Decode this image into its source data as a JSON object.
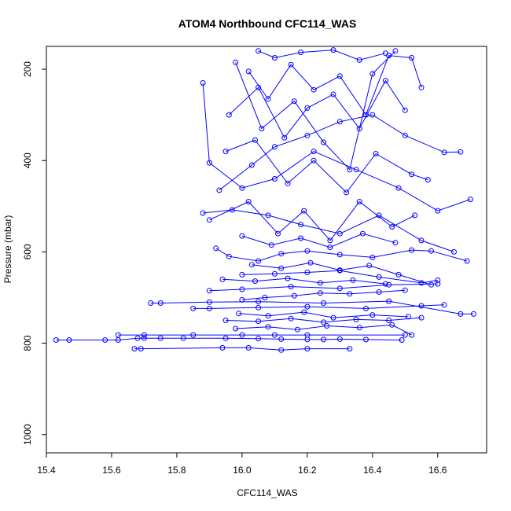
{
  "chart_data": {
    "type": "line",
    "title": "ATOM4 Northbound CFC114_WAS",
    "xlabel": "CFC114_WAS",
    "ylabel": "Pressure (mbar)",
    "xlim": [
      15.4,
      16.75
    ],
    "ylim": [
      1040,
      150
    ],
    "y_inverted": true,
    "x_ticks": [
      "15.4",
      "15.6",
      "15.8",
      "16.0",
      "16.2",
      "16.4",
      "16.6"
    ],
    "y_ticks": [
      "200",
      "400",
      "600",
      "800",
      "1000"
    ],
    "grid": false,
    "line_color": "#0000ff",
    "marker": "open-circle",
    "series": [
      {
        "x": [
          15.43,
          15.47,
          15.58,
          15.62,
          15.68,
          15.7,
          15.75,
          15.82,
          15.95,
          16.05,
          16.12,
          16.2,
          16.25,
          16.3,
          16.38,
          16.49
        ],
        "y": [
          793,
          793,
          793,
          793,
          789,
          789,
          789,
          789,
          789,
          790,
          791,
          792,
          792,
          791,
          792,
          793
        ]
      },
      {
        "x": [
          15.67,
          15.69,
          15.94,
          16.02,
          16.12,
          16.2,
          16.33
        ],
        "y": [
          812,
          812,
          810,
          810,
          815,
          812,
          812
        ]
      },
      {
        "x": [
          15.62,
          15.7,
          15.85,
          16.0,
          16.1,
          16.2,
          16.5
        ],
        "y": [
          782,
          782,
          782,
          782,
          782,
          782,
          782
        ]
      },
      {
        "x": [
          15.72,
          15.75,
          15.9,
          16.05,
          16.25,
          16.45,
          16.67,
          16.71
        ],
        "y": [
          712,
          712,
          710,
          709,
          712,
          708,
          736,
          736
        ]
      },
      {
        "x": [
          15.85,
          15.9,
          16.05,
          16.2,
          16.38,
          16.55,
          16.62
        ],
        "y": [
          724,
          724,
          722,
          720,
          724,
          718,
          716
        ]
      },
      {
        "x": [
          15.9,
          16.0,
          16.15,
          16.3,
          16.45,
          16.6
        ],
        "y": [
          685,
          682,
          676,
          680,
          672,
          670
        ]
      },
      {
        "x": [
          16.0,
          16.1,
          16.2,
          16.3,
          16.42,
          16.55,
          16.6
        ],
        "y": [
          650,
          648,
          645,
          641,
          655,
          668,
          662
        ]
      },
      {
        "x": [
          15.92,
          15.96,
          16.05,
          16.12,
          16.2,
          16.3,
          16.4,
          16.52,
          16.58,
          16.69
        ],
        "y": [
          592,
          610,
          620,
          604,
          598,
          606,
          612,
          596,
          598,
          620
        ]
      },
      {
        "x": [
          15.88,
          15.97,
          16.08,
          16.18,
          16.3,
          16.42,
          16.55,
          16.65
        ],
        "y": [
          515,
          508,
          520,
          540,
          560,
          520,
          575,
          600
        ]
      },
      {
        "x": [
          15.88,
          15.9,
          16.0,
          16.1,
          16.22,
          16.35,
          16.48,
          16.6,
          16.7
        ],
        "y": [
          230,
          405,
          460,
          440,
          380,
          420,
          460,
          510,
          485
        ]
      },
      {
        "x": [
          15.93,
          16.03,
          16.1,
          16.2,
          16.3,
          16.4,
          16.5,
          16.62,
          16.67
        ],
        "y": [
          465,
          410,
          370,
          345,
          315,
          300,
          345,
          382,
          381
        ]
      },
      {
        "x": [
          16.02,
          16.08,
          16.15,
          16.22,
          16.3,
          16.38,
          16.45,
          16.52,
          16.55
        ],
        "y": [
          205,
          265,
          190,
          245,
          215,
          300,
          170,
          175,
          240
        ]
      },
      {
        "x": [
          15.96,
          16.05,
          16.13,
          16.2,
          16.28,
          16.36,
          16.44,
          16.5
        ],
        "y": [
          300,
          240,
          350,
          285,
          255,
          330,
          225,
          290
        ]
      },
      {
        "x": [
          15.98,
          16.06,
          16.16,
          16.25,
          16.33,
          16.4,
          16.47
        ],
        "y": [
          185,
          330,
          270,
          360,
          420,
          210,
          160
        ]
      },
      {
        "x": [
          15.95,
          16.04,
          16.14,
          16.22,
          16.32,
          16.41,
          16.52,
          16.57
        ],
        "y": [
          380,
          355,
          450,
          400,
          470,
          385,
          430,
          442
        ]
      },
      {
        "x": [
          15.9,
          16.02,
          16.11,
          16.19,
          16.27,
          16.36,
          16.46,
          16.53
        ],
        "y": [
          530,
          490,
          560,
          510,
          575,
          490,
          545,
          520
        ]
      },
      {
        "x": [
          15.95,
          16.05,
          16.15,
          16.25,
          16.35,
          16.45,
          16.55
        ],
        "y": [
          750,
          752,
          746,
          754,
          748,
          750,
          744
        ]
      },
      {
        "x": [
          15.98,
          16.08,
          16.17,
          16.26,
          16.36,
          16.46,
          16.52
        ],
        "y": [
          768,
          764,
          770,
          762,
          766,
          760,
          782
        ]
      },
      {
        "x": [
          16.0,
          16.07,
          16.16,
          16.24,
          16.33,
          16.42,
          16.5
        ],
        "y": [
          705,
          700,
          696,
          690,
          692,
          688,
          684
        ]
      },
      {
        "x": [
          16.03,
          16.12,
          16.21,
          16.3,
          16.39,
          16.48,
          16.58
        ],
        "y": [
          628,
          636,
          624,
          640,
          630,
          650,
          672
        ]
      },
      {
        "x": [
          16.0,
          16.09,
          16.18,
          16.27,
          16.37,
          16.47
        ],
        "y": [
          565,
          585,
          570,
          590,
          560,
          580
        ]
      },
      {
        "x": [
          15.94,
          16.04,
          16.14,
          16.24,
          16.34,
          16.44
        ],
        "y": [
          660,
          664,
          658,
          668,
          662,
          670
        ]
      },
      {
        "x": [
          15.99,
          16.08,
          16.19,
          16.28,
          16.4,
          16.51
        ],
        "y": [
          735,
          740,
          732,
          744,
          738,
          742
        ]
      },
      {
        "x": [
          16.05,
          16.1,
          16.18,
          16.28,
          16.36,
          16.44
        ],
        "y": [
          160,
          175,
          163,
          158,
          180,
          165
        ]
      }
    ]
  }
}
